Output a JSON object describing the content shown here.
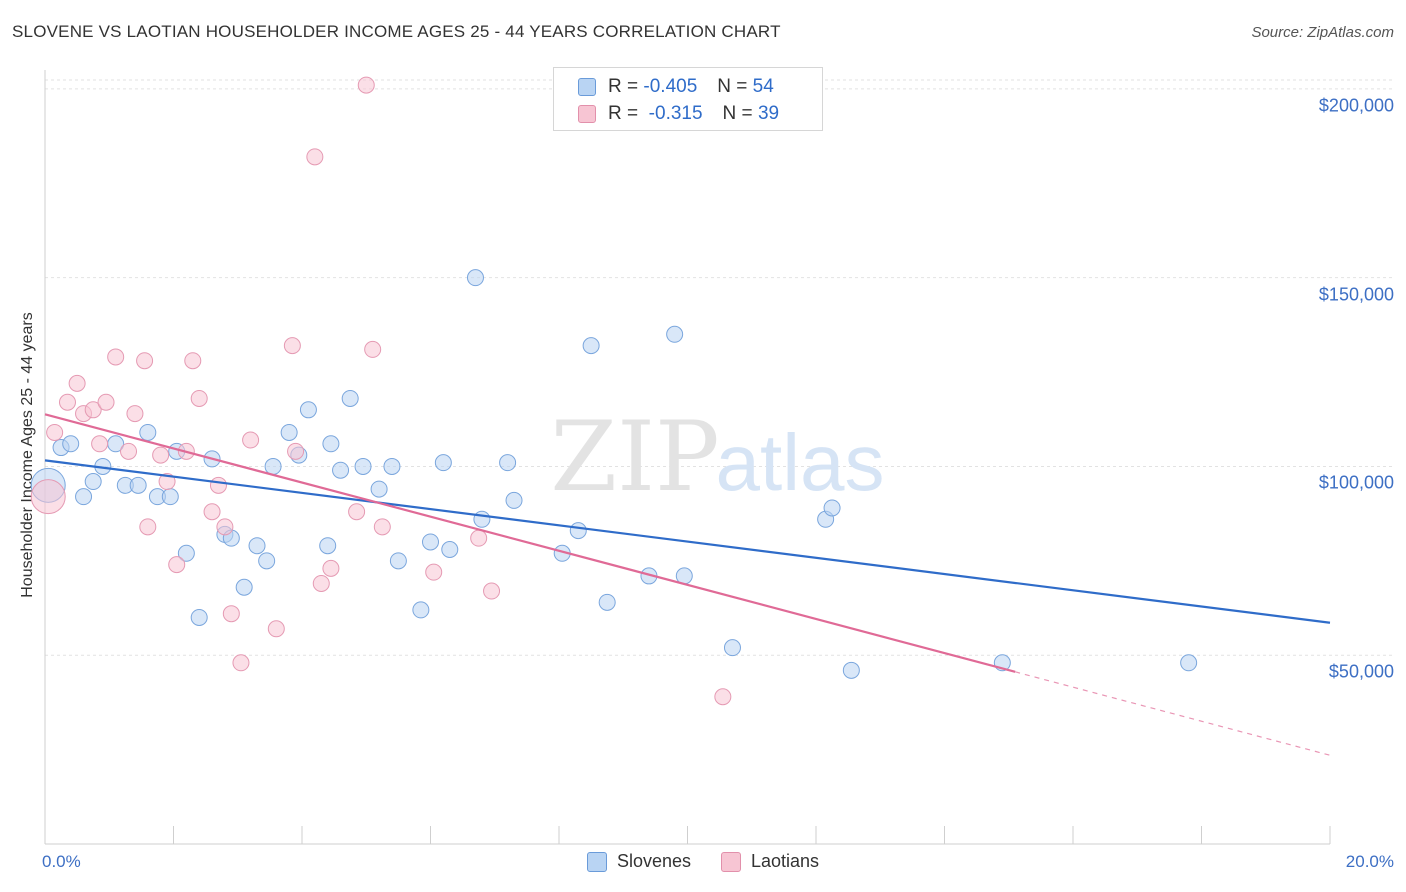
{
  "header": {
    "title": "SLOVENE VS LAOTIAN HOUSEHOLDER INCOME AGES 25 - 44 YEARS CORRELATION CHART",
    "source": "Source: ZipAtlas.com"
  },
  "watermark": {
    "zip": "ZIP",
    "atlas": "atlas"
  },
  "stats": {
    "blue": {
      "r_label": "R =",
      "r_value": "-0.405",
      "n_label": "N =",
      "n_value": "54"
    },
    "pink": {
      "r_label": "R =",
      "r_value": "-0.315",
      "n_label": "N =",
      "n_value": "39"
    }
  },
  "legend": {
    "blue": "Slovenes",
    "pink": "Laotians"
  },
  "colors": {
    "blue_fill": "#b9d4f3",
    "blue_line": "#2f6cc9",
    "pink_fill": "#f7c5d3",
    "pink_line": "#e06a96",
    "tick_text": "#3d6fc4"
  },
  "chart_data": {
    "type": "scatter",
    "title": "SLOVENE VS LAOTIAN HOUSEHOLDER INCOME AGES 25 - 44 YEARS CORRELATION CHART",
    "xlabel": "",
    "ylabel": "Householder Income Ages 25 - 44 years",
    "xlim": [
      0,
      20
    ],
    "ylim": [
      0,
      205000
    ],
    "x_tick_labels": [
      "0.0%",
      "20.0%"
    ],
    "y_ticks": [
      50000,
      100000,
      150000,
      200000
    ],
    "y_tick_labels": [
      "$50,000",
      "$100,000",
      "$150,000",
      "$200,000"
    ],
    "grid": true,
    "legend_position": "bottom-center",
    "series": [
      {
        "name": "Slovenes",
        "color": "#2f6cc9",
        "points": [
          [
            0.05,
            95000
          ],
          [
            0.25,
            105000
          ],
          [
            0.4,
            106000
          ],
          [
            0.6,
            92000
          ],
          [
            0.75,
            96000
          ],
          [
            0.9,
            100000
          ],
          [
            1.1,
            106000
          ],
          [
            1.25,
            95000
          ],
          [
            1.45,
            95000
          ],
          [
            1.6,
            109000
          ],
          [
            1.75,
            92000
          ],
          [
            1.95,
            92000
          ],
          [
            2.05,
            104000
          ],
          [
            2.2,
            77000
          ],
          [
            2.4,
            60000
          ],
          [
            2.6,
            102000
          ],
          [
            2.8,
            82000
          ],
          [
            2.9,
            81000
          ],
          [
            3.1,
            68000
          ],
          [
            3.3,
            79000
          ],
          [
            3.45,
            75000
          ],
          [
            3.55,
            100000
          ],
          [
            3.8,
            109000
          ],
          [
            3.95,
            103000
          ],
          [
            4.1,
            115000
          ],
          [
            4.4,
            79000
          ],
          [
            4.45,
            106000
          ],
          [
            4.6,
            99000
          ],
          [
            4.75,
            118000
          ],
          [
            4.95,
            100000
          ],
          [
            5.2,
            94000
          ],
          [
            5.4,
            100000
          ],
          [
            5.5,
            75000
          ],
          [
            5.85,
            62000
          ],
          [
            6.0,
            80000
          ],
          [
            6.2,
            101000
          ],
          [
            6.3,
            78000
          ],
          [
            6.7,
            150000
          ],
          [
            6.8,
            86000
          ],
          [
            7.2,
            101000
          ],
          [
            7.3,
            91000
          ],
          [
            8.05,
            77000
          ],
          [
            8.3,
            83000
          ],
          [
            8.5,
            132000
          ],
          [
            8.75,
            64000
          ],
          [
            9.4,
            71000
          ],
          [
            9.8,
            135000
          ],
          [
            9.95,
            71000
          ],
          [
            10.7,
            52000
          ],
          [
            12.15,
            86000
          ],
          [
            12.25,
            89000
          ],
          [
            12.55,
            46000
          ],
          [
            14.9,
            48000
          ],
          [
            17.8,
            48000
          ]
        ]
      },
      {
        "name": "Laotians",
        "color": "#e06a96",
        "points": [
          [
            0.05,
            92000
          ],
          [
            0.15,
            109000
          ],
          [
            0.35,
            117000
          ],
          [
            0.5,
            122000
          ],
          [
            0.6,
            114000
          ],
          [
            0.75,
            115000
          ],
          [
            0.85,
            106000
          ],
          [
            0.95,
            117000
          ],
          [
            1.1,
            129000
          ],
          [
            1.3,
            104000
          ],
          [
            1.4,
            114000
          ],
          [
            1.55,
            128000
          ],
          [
            1.6,
            84000
          ],
          [
            1.8,
            103000
          ],
          [
            1.9,
            96000
          ],
          [
            2.05,
            74000
          ],
          [
            2.2,
            104000
          ],
          [
            2.3,
            128000
          ],
          [
            2.4,
            118000
          ],
          [
            2.6,
            88000
          ],
          [
            2.7,
            95000
          ],
          [
            2.8,
            84000
          ],
          [
            2.9,
            61000
          ],
          [
            3.05,
            48000
          ],
          [
            3.2,
            107000
          ],
          [
            3.6,
            57000
          ],
          [
            3.85,
            132000
          ],
          [
            3.9,
            104000
          ],
          [
            4.2,
            182000
          ],
          [
            4.3,
            69000
          ],
          [
            4.45,
            73000
          ],
          [
            4.85,
            88000
          ],
          [
            5.0,
            201000
          ],
          [
            5.1,
            131000
          ],
          [
            5.25,
            84000
          ],
          [
            6.05,
            72000
          ],
          [
            6.75,
            81000
          ],
          [
            6.95,
            67000
          ],
          [
            10.55,
            39000
          ]
        ]
      }
    ],
    "trend_lines": [
      {
        "name": "Slovenes",
        "x": [
          0,
          20
        ],
        "y": [
          101600,
          58600
        ]
      },
      {
        "name": "Laotians",
        "x": [
          0,
          15.1
        ],
        "y": [
          113800,
          45600
        ],
        "dashed_extension": {
          "x": [
            15.1,
            20
          ],
          "y": [
            45600,
            23500
          ]
        }
      }
    ]
  }
}
